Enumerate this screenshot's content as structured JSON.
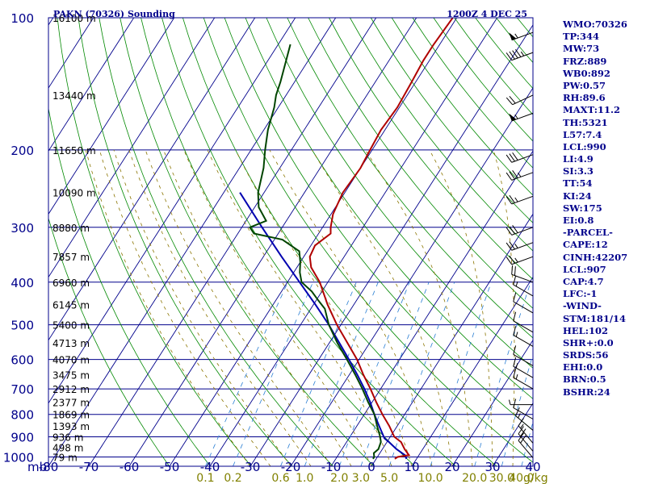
{
  "header": {
    "station": "PAKN (70326) Sounding",
    "time": "1200Z  4 DEC 25"
  },
  "chart_data": {
    "type": "skew-t",
    "pressure_levels": [
      100,
      200,
      300,
      400,
      500,
      600,
      700,
      800,
      900,
      1000
    ],
    "pressure_unit": "mb",
    "temperature_ticks": [
      -80,
      -70,
      -60,
      -50,
      -40,
      -30,
      -20,
      -10,
      0,
      10,
      20,
      30,
      40
    ],
    "mixing_ratio_labels": [
      "0.1",
      "0.2",
      "0.6",
      "1.0",
      "2.0",
      "3.0",
      "5.0",
      "10.0",
      "20.0",
      "30.0",
      "40.0"
    ],
    "mixing_ratio_unit": "g/kg",
    "height_labels": [
      {
        "p": 100,
        "text": "16100 m"
      },
      {
        "p": 150,
        "text": "13440 m"
      },
      {
        "p": 200,
        "text": "11650 m"
      },
      {
        "p": 250,
        "text": "10090 m"
      },
      {
        "p": 300,
        "text": "8880 m"
      },
      {
        "p": 350,
        "text": "7857 m"
      },
      {
        "p": 400,
        "text": "6960 m"
      },
      {
        "p": 450,
        "text": "6145 m"
      },
      {
        "p": 500,
        "text": "5400 m"
      },
      {
        "p": 550,
        "text": "4713 m"
      },
      {
        "p": 600,
        "text": "4070 m"
      },
      {
        "p": 650,
        "text": "3475 m"
      },
      {
        "p": 700,
        "text": "2912 m"
      },
      {
        "p": 750,
        "text": "2377 m"
      },
      {
        "p": 800,
        "text": "1869 m"
      },
      {
        "p": 850,
        "text": "1393 m"
      },
      {
        "p": 900,
        "text": "936 m"
      },
      {
        "p": 950,
        "text": "498 m"
      },
      {
        "p": 1000,
        "text": "79 m"
      }
    ],
    "temperature": [
      {
        "p": 1010,
        "t": 4.6
      },
      {
        "p": 1000,
        "t": 5.0
      },
      {
        "p": 990,
        "t": 7.5
      },
      {
        "p": 960,
        "t": 5.5
      },
      {
        "p": 925,
        "t": 3.5
      },
      {
        "p": 900,
        "t": 1.0
      },
      {
        "p": 850,
        "t": -2.0
      },
      {
        "p": 800,
        "t": -5.5
      },
      {
        "p": 750,
        "t": -9.0
      },
      {
        "p": 700,
        "t": -12.5
      },
      {
        "p": 650,
        "t": -16.5
      },
      {
        "p": 600,
        "t": -20.5
      },
      {
        "p": 550,
        "t": -25.5
      },
      {
        "p": 500,
        "t": -31.0
      },
      {
        "p": 450,
        "t": -36.5
      },
      {
        "p": 400,
        "t": -42.0
      },
      {
        "p": 370,
        "t": -46.5
      },
      {
        "p": 350,
        "t": -48.5
      },
      {
        "p": 330,
        "t": -49.0
      },
      {
        "p": 310,
        "t": -47.0
      },
      {
        "p": 300,
        "t": -48.0
      },
      {
        "p": 280,
        "t": -49.5
      },
      {
        "p": 250,
        "t": -50.5
      },
      {
        "p": 220,
        "t": -50.0
      },
      {
        "p": 200,
        "t": -50.5
      },
      {
        "p": 180,
        "t": -51.0
      },
      {
        "p": 160,
        "t": -50.5
      },
      {
        "p": 140,
        "t": -51.0
      },
      {
        "p": 125,
        "t": -51.5
      },
      {
        "p": 115,
        "t": -51.5
      },
      {
        "p": 100,
        "t": -51.0
      }
    ],
    "dewpoint": [
      {
        "p": 1010,
        "t": -0.8
      },
      {
        "p": 1000,
        "t": -0.8
      },
      {
        "p": 980,
        "t": -1.5
      },
      {
        "p": 960,
        "t": -1.0
      },
      {
        "p": 925,
        "t": -1.5
      },
      {
        "p": 900,
        "t": -2.5
      },
      {
        "p": 850,
        "t": -5.0
      },
      {
        "p": 800,
        "t": -7.5
      },
      {
        "p": 750,
        "t": -11.0
      },
      {
        "p": 700,
        "t": -14.5
      },
      {
        "p": 650,
        "t": -18.5
      },
      {
        "p": 600,
        "t": -23.0
      },
      {
        "p": 550,
        "t": -28.0
      },
      {
        "p": 500,
        "t": -33.0
      },
      {
        "p": 460,
        "t": -36.5
      },
      {
        "p": 440,
        "t": -39.5
      },
      {
        "p": 420,
        "t": -42.5
      },
      {
        "p": 400,
        "t": -46.5
      },
      {
        "p": 380,
        "t": -48.5
      },
      {
        "p": 360,
        "t": -50.0
      },
      {
        "p": 340,
        "t": -52.0
      },
      {
        "p": 320,
        "t": -58.0
      },
      {
        "p": 310,
        "t": -66.0
      },
      {
        "p": 300,
        "t": -68.0
      },
      {
        "p": 290,
        "t": -65.0
      },
      {
        "p": 270,
        "t": -69.0
      },
      {
        "p": 250,
        "t": -71.5
      },
      {
        "p": 220,
        "t": -74.0
      },
      {
        "p": 200,
        "t": -76.5
      },
      {
        "p": 180,
        "t": -79.0
      },
      {
        "p": 160,
        "t": -81.0
      },
      {
        "p": 150,
        "t": -82.5
      },
      {
        "p": 140,
        "t": -83.5
      },
      {
        "p": 125,
        "t": -85.5
      },
      {
        "p": 115,
        "t": -87.0
      }
    ],
    "parcel": [
      {
        "p": 1010,
        "t": 7.5
      },
      {
        "p": 990,
        "t": 6.5
      },
      {
        "p": 960,
        "t": 3.5
      },
      {
        "p": 925,
        "t": 0.5
      },
      {
        "p": 907,
        "t": -1.2
      },
      {
        "p": 850,
        "t": -4.5
      },
      {
        "p": 800,
        "t": -7.5
      },
      {
        "p": 750,
        "t": -10.5
      },
      {
        "p": 700,
        "t": -14.0
      },
      {
        "p": 650,
        "t": -18.0
      },
      {
        "p": 600,
        "t": -22.5
      },
      {
        "p": 550,
        "t": -27.5
      },
      {
        "p": 500,
        "t": -33.0
      },
      {
        "p": 450,
        "t": -39.5
      },
      {
        "p": 400,
        "t": -47.0
      },
      {
        "p": 350,
        "t": -55.5
      },
      {
        "p": 300,
        "t": -65.0
      },
      {
        "p": 250,
        "t": -76.0
      }
    ],
    "wind_barbs": [
      {
        "p": 108,
        "speed": 55,
        "dir": 250
      },
      {
        "p": 120,
        "speed": 45,
        "dir": 250
      },
      {
        "p": 150,
        "speed": 20,
        "dir": 245
      },
      {
        "p": 165,
        "speed": 55,
        "dir": 250
      },
      {
        "p": 205,
        "speed": 30,
        "dir": 250
      },
      {
        "p": 225,
        "speed": 35,
        "dir": 250
      },
      {
        "p": 255,
        "speed": 25,
        "dir": 250
      },
      {
        "p": 300,
        "speed": 30,
        "dir": 250
      },
      {
        "p": 325,
        "speed": 25,
        "dir": 250
      },
      {
        "p": 350,
        "speed": 25,
        "dir": 250
      },
      {
        "p": 400,
        "speed": 20,
        "dir": 290
      },
      {
        "p": 430,
        "speed": 15,
        "dir": 300
      },
      {
        "p": 470,
        "speed": 10,
        "dir": 300
      },
      {
        "p": 520,
        "speed": 10,
        "dir": 300
      },
      {
        "p": 560,
        "speed": 15,
        "dir": 300
      },
      {
        "p": 620,
        "speed": 10,
        "dir": 300
      },
      {
        "p": 660,
        "speed": 15,
        "dir": 300
      },
      {
        "p": 700,
        "speed": 15,
        "dir": 300
      },
      {
        "p": 760,
        "speed": 5,
        "dir": 270
      },
      {
        "p": 820,
        "speed": 10,
        "dir": 300
      },
      {
        "p": 870,
        "speed": 15,
        "dir": 310
      },
      {
        "p": 930,
        "speed": 15,
        "dir": 320
      },
      {
        "p": 970,
        "speed": 20,
        "dir": 320
      },
      {
        "p": 1005,
        "speed": 20,
        "dir": 320
      }
    ],
    "axes": {
      "p_range": [
        100,
        1050
      ],
      "t_range_at_bottom": [
        -80,
        40
      ],
      "p_scale": "log"
    },
    "colors": {
      "isobar": "#00008b",
      "isotherm": "#00008b",
      "dry_adiabat": "#008800",
      "moist_adiabat": "#8b7500",
      "mixing_ratio": "#2a7fd4",
      "temperature": "#b00000",
      "dewpoint": "#004400",
      "parcel": "#0000b0"
    }
  },
  "indices": [
    "WMO:70326",
    "TP:344",
    "MW:73",
    "FRZ:889",
    "WB0:892",
    "PW:0.57",
    "RH:89.6",
    "MAXT:11.2",
    "TH:5321",
    "L57:7.4",
    "LCL:990",
    "LI:4.9",
    "SI:3.3",
    "TT:54",
    "KI:24",
    "SW:175",
    "EI:0.8",
    "-PARCEL-",
    "CAPE:12",
    "CINH:42207",
    "LCL:907",
    "CAP:4.7",
    "LFC:-1",
    "-WIND-",
    "STM:181/14",
    "HEL:102",
    "SHR+:0.0",
    "SRDS:56",
    "EHI:0.0",
    "BRN:0.5",
    "BSHR:24"
  ]
}
